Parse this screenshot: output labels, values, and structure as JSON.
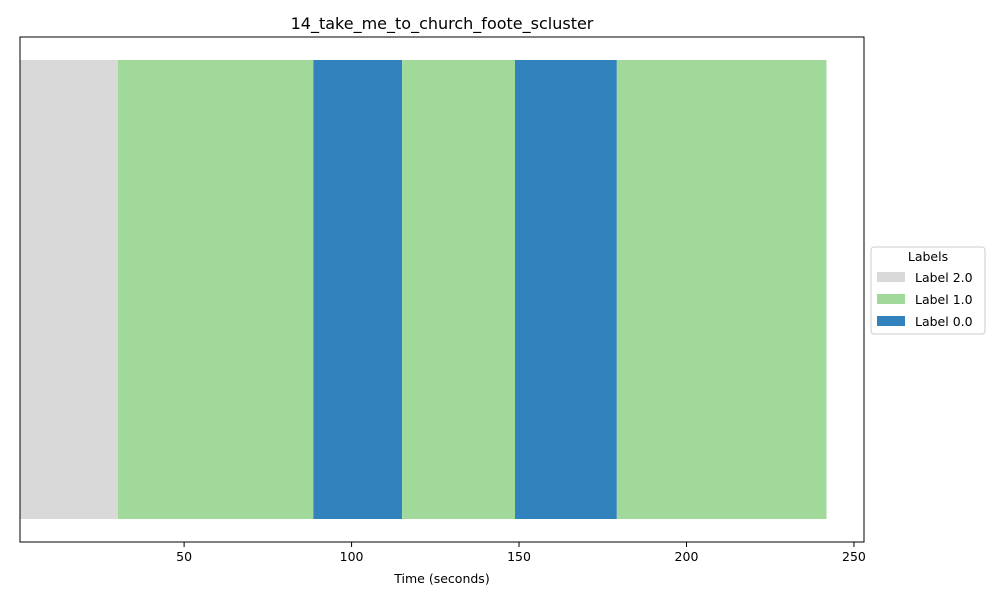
{
  "chart_data": {
    "type": "bar",
    "orientation": "horizontal-timeline",
    "title": "14_take_me_to_church_foote_scluster",
    "xlabel": "Time (seconds)",
    "ylabel": "",
    "xlim": [
      1,
      253
    ],
    "xticks": [
      50,
      100,
      150,
      200,
      250
    ],
    "grid": false,
    "segments": [
      {
        "start": 0,
        "end": 30.2,
        "label": "Label 2.0"
      },
      {
        "start": 30.2,
        "end": 88.6,
        "label": "Label 1.0"
      },
      {
        "start": 88.6,
        "end": 115.1,
        "label": "Label 0.0"
      },
      {
        "start": 115.1,
        "end": 148.8,
        "label": "Label 1.0"
      },
      {
        "start": 148.8,
        "end": 179.2,
        "label": "Label 0.0"
      },
      {
        "start": 179.2,
        "end": 241.8,
        "label": "Label 1.0"
      }
    ],
    "legend": {
      "title": "Labels",
      "placement": "center-right-outside",
      "entries": [
        {
          "label": "Label 2.0",
          "color": "#d9d9d9"
        },
        {
          "label": "Label 1.0",
          "color": "#a1d99b"
        },
        {
          "label": "Label 0.0",
          "color": "#3182bd"
        }
      ]
    }
  }
}
